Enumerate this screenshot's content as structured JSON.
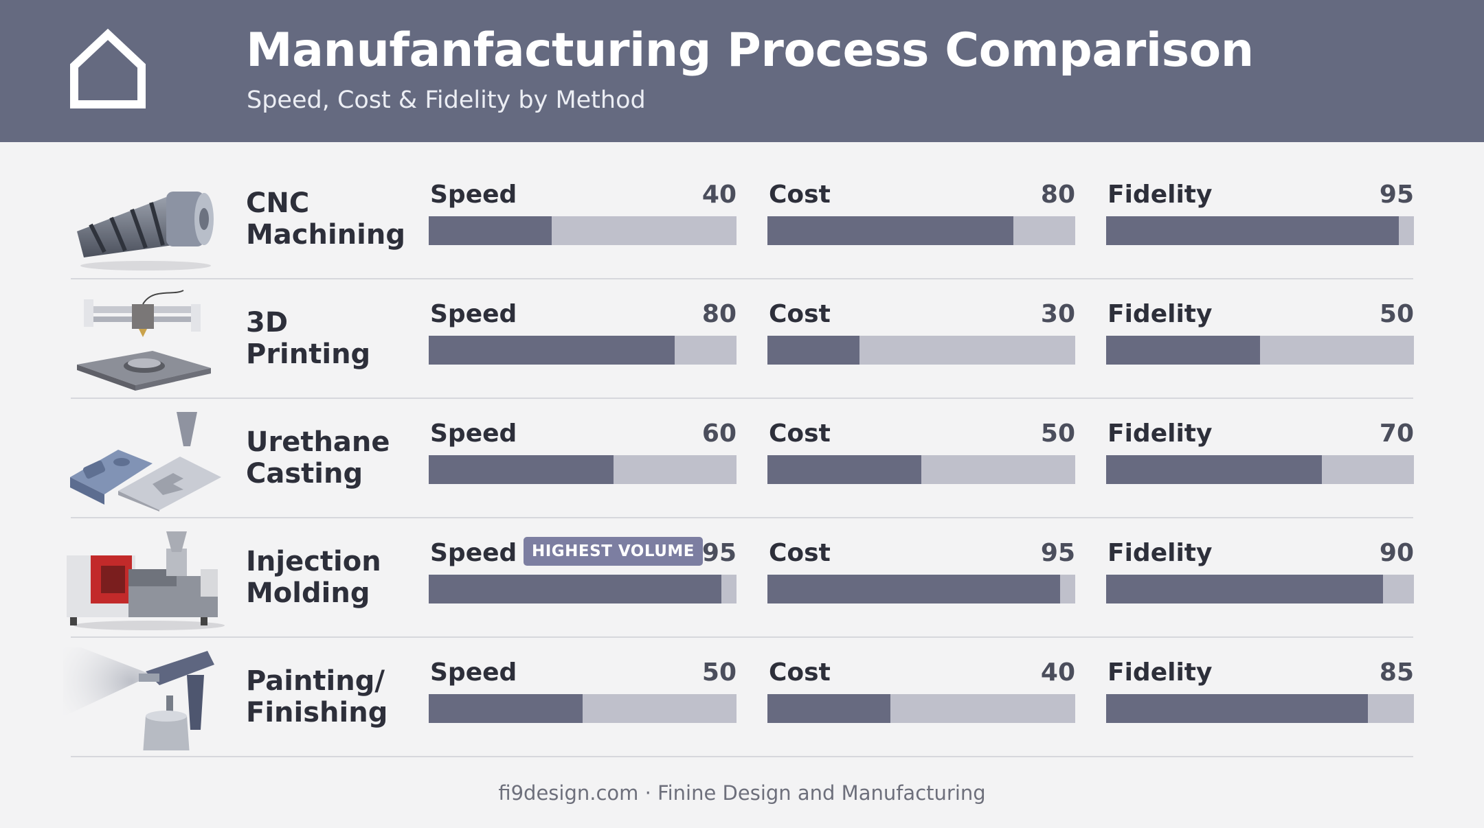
{
  "header": {
    "title": "Manufanfacturing Process Comparison",
    "subtitle": "Speed, Cost & Fidelity by Method",
    "logo_icon": "house-outline-icon"
  },
  "colors": {
    "header_bg": "#656a80",
    "bar_fill": "#676a80",
    "bar_track": "#bfc0cb",
    "badge_bg": "#7c7ea1"
  },
  "chart_data": {
    "type": "bar",
    "orientation": "horizontal",
    "scale": [
      0,
      100
    ],
    "metrics": [
      "Speed",
      "Cost",
      "Fidelity"
    ],
    "rows": [
      {
        "name": "CNC\nMachining",
        "icon": "cnc-end-mill-icon",
        "badge": "",
        "values": {
          "speed": 40,
          "cost": 80,
          "fidelity": 95
        }
      },
      {
        "name": "3D\nPrinting",
        "icon": "3d-printer-icon",
        "badge": "",
        "values": {
          "speed": 80,
          "cost": 30,
          "fidelity": 50
        }
      },
      {
        "name": "Urethane\nCasting",
        "icon": "silicone-mold-icon",
        "badge": "",
        "values": {
          "speed": 60,
          "cost": 50,
          "fidelity": 70
        }
      },
      {
        "name": "Injection\nMolding",
        "icon": "injection-molding-machine-icon",
        "badge": "HIGHEST VOLUME",
        "values": {
          "speed": 95,
          "cost": 95,
          "fidelity": 90
        }
      },
      {
        "name": "Painting/\nFinishing",
        "icon": "spray-gun-icon",
        "badge": "",
        "values": {
          "speed": 50,
          "cost": 40,
          "fidelity": 85
        }
      }
    ]
  },
  "footer": {
    "text": "fi9design.com · Finine Design and Manufacturing"
  }
}
